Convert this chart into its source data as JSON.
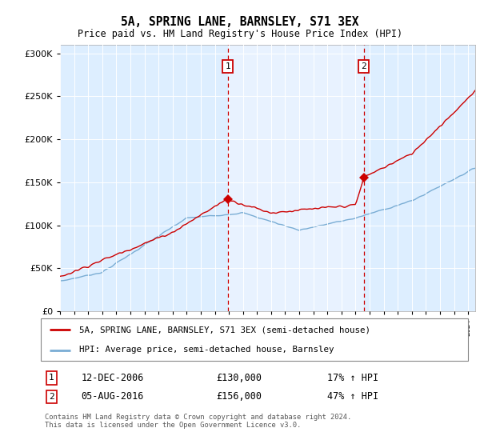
{
  "title": "5A, SPRING LANE, BARNSLEY, S71 3EX",
  "subtitle": "Price paid vs. HM Land Registry's House Price Index (HPI)",
  "legend_entry1": "5A, SPRING LANE, BARNSLEY, S71 3EX (semi-detached house)",
  "legend_entry2": "HPI: Average price, semi-detached house, Barnsley",
  "sale1_date": "12-DEC-2006",
  "sale1_price": 130000,
  "sale1_label": "17% ↑ HPI",
  "sale2_date": "05-AUG-2016",
  "sale2_price": 156000,
  "sale2_label": "47% ↑ HPI",
  "footnote": "Contains HM Land Registry data © Crown copyright and database right 2024.\nThis data is licensed under the Open Government Licence v3.0.",
  "red_color": "#cc0000",
  "blue_color": "#7aadd4",
  "bg_color": "#ddeeff",
  "bg_between": "#e8f2ff",
  "ylim": [
    0,
    310000
  ],
  "yticks": [
    0,
    50000,
    100000,
    150000,
    200000,
    250000,
    300000
  ],
  "sale1_year": 2006.917,
  "sale2_year": 2016.583,
  "xstart": 1995,
  "xend": 2024.5
}
